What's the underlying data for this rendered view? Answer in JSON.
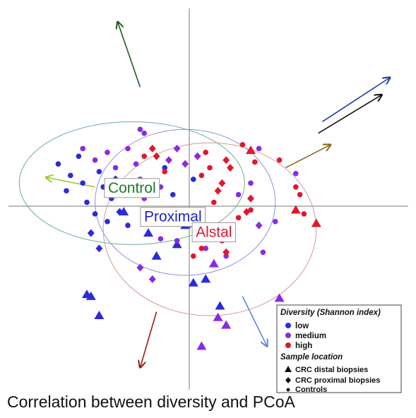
{
  "chart_data": {
    "type": "scatter",
    "title": "Correlation between diversity and PCoA",
    "xlim": [
      -1,
      1
    ],
    "ylim": [
      -1,
      1
    ],
    "grid": false,
    "axes_lines_at_origin": true,
    "colors": {
      "low": "#2b2bd9",
      "medium": "#8a2be2",
      "high": "#e0182d"
    },
    "legend": {
      "placement": "bottom-right",
      "diversity_heading": "Diversity (Shannon index)",
      "diversity_items": [
        {
          "key": "low",
          "label": "low"
        },
        {
          "key": "medium",
          "label": "medium"
        },
        {
          "key": "high",
          "label": "high"
        }
      ],
      "location_heading": "Sample location",
      "location_items": [
        {
          "shape": "triangle",
          "label": "CRC distal biopsies"
        },
        {
          "shape": "diamond",
          "label": "CRC proximal biopsies"
        },
        {
          "shape": "circle",
          "label": "Controls"
        }
      ]
    },
    "group_labels": [
      {
        "text": "Control",
        "color": "#1d7a2a",
        "x": -0.28,
        "y": 0.1
      },
      {
        "text": "Proximal",
        "color": "#2222cc",
        "x": -0.08,
        "y": -0.05
      },
      {
        "text": "Alstal",
        "color": "#e0182d",
        "x": 0.12,
        "y": -0.13
      }
    ],
    "ellipses": [
      {
        "name": "Control",
        "color": "#6fae8f",
        "cx": -0.28,
        "cy": 0.12,
        "rx": 0.55,
        "ry": 0.32
      },
      {
        "name": "Proximal",
        "color": "#8f8fe0",
        "cx": -0.02,
        "cy": 0.02,
        "rx": 0.44,
        "ry": 0.38
      },
      {
        "name": "Distal",
        "color": "#d49a9a",
        "cx": 0.1,
        "cy": -0.12,
        "rx": 0.52,
        "ry": 0.45
      }
    ],
    "arrows": [
      {
        "color": "#1c5e1c",
        "x1": -0.24,
        "y1": 0.62,
        "x2": -0.35,
        "y2": 0.96
      },
      {
        "color": "#1f3fa8",
        "x1": 0.65,
        "y1": 0.44,
        "x2": 0.98,
        "y2": 0.67
      },
      {
        "color": "#111111",
        "x1": 0.63,
        "y1": 0.38,
        "x2": 0.94,
        "y2": 0.58
      },
      {
        "color": "#8a6a1a",
        "x1": 0.47,
        "y1": 0.2,
        "x2": 0.69,
        "y2": 0.32
      },
      {
        "color": "#9acd32",
        "x1": -0.46,
        "y1": 0.1,
        "x2": -0.7,
        "y2": 0.15
      },
      {
        "color": "#5a8ad6",
        "x1": 0.26,
        "y1": -0.47,
        "x2": 0.38,
        "y2": -0.73
      },
      {
        "color": "#9a1a1a",
        "x1": -0.16,
        "y1": -0.55,
        "x2": -0.24,
        "y2": -0.84
      }
    ],
    "series": [
      {
        "name": "low",
        "points": [
          {
            "x": -0.64,
            "y": 0.22,
            "s": "circle"
          },
          {
            "x": -0.6,
            "y": 0.08,
            "s": "circle"
          },
          {
            "x": -0.58,
            "y": 0.16,
            "s": "circle"
          },
          {
            "x": -0.54,
            "y": 0.26,
            "s": "circle"
          },
          {
            "x": -0.52,
            "y": 0.12,
            "s": "circle"
          },
          {
            "x": -0.5,
            "y": 0.02,
            "s": "circle"
          },
          {
            "x": -0.46,
            "y": -0.04,
            "s": "circle"
          },
          {
            "x": -0.44,
            "y": 0.18,
            "s": "circle"
          },
          {
            "x": -0.42,
            "y": 0.1,
            "s": "circle"
          },
          {
            "x": -0.4,
            "y": -0.08,
            "s": "circle"
          },
          {
            "x": -0.38,
            "y": 0.04,
            "s": "circle"
          },
          {
            "x": -0.48,
            "y": -0.14,
            "s": "diamond"
          },
          {
            "x": -0.44,
            "y": -0.22,
            "s": "diamond"
          },
          {
            "x": -0.36,
            "y": 0.14,
            "s": "diamond"
          },
          {
            "x": -0.34,
            "y": -0.03,
            "s": "diamond"
          },
          {
            "x": -0.3,
            "y": -0.1,
            "s": "circle"
          },
          {
            "x": -0.32,
            "y": -0.03,
            "s": "triangle"
          },
          {
            "x": -0.2,
            "y": -0.14,
            "s": "triangle"
          },
          {
            "x": -0.16,
            "y": -0.26,
            "s": "triangle"
          },
          {
            "x": -0.18,
            "y": -0.09,
            "s": "circle"
          },
          {
            "x": -0.1,
            "y": -0.03,
            "s": "triangle"
          },
          {
            "x": -0.06,
            "y": -0.2,
            "s": "triangle"
          },
          {
            "x": 0.02,
            "y": -0.4,
            "s": "triangle"
          },
          {
            "x": 0.08,
            "y": -0.38,
            "s": "triangle"
          },
          {
            "x": -0.02,
            "y": -0.1,
            "s": "triangle"
          },
          {
            "x": 0.15,
            "y": -0.52,
            "s": "triangle"
          },
          {
            "x": -0.5,
            "y": -0.46,
            "s": "triangle"
          },
          {
            "x": -0.48,
            "y": -0.47,
            "s": "triangle"
          },
          {
            "x": -0.44,
            "y": -0.57,
            "s": "triangle"
          },
          {
            "x": -0.12,
            "y": 0.2,
            "s": "circle"
          },
          {
            "x": -0.08,
            "y": 0.06,
            "s": "circle"
          },
          {
            "x": 0.02,
            "y": 0.14,
            "s": "circle"
          }
        ]
      },
      {
        "name": "medium",
        "points": [
          {
            "x": -0.52,
            "y": 0.3,
            "s": "circle"
          },
          {
            "x": -0.46,
            "y": 0.24,
            "s": "circle"
          },
          {
            "x": -0.4,
            "y": 0.28,
            "s": "circle"
          },
          {
            "x": -0.36,
            "y": 0.2,
            "s": "circle"
          },
          {
            "x": -0.3,
            "y": 0.3,
            "s": "circle"
          },
          {
            "x": -0.26,
            "y": 0.22,
            "s": "circle"
          },
          {
            "x": -0.22,
            "y": 0.38,
            "s": "circle"
          },
          {
            "x": -0.24,
            "y": 0.14,
            "s": "circle"
          },
          {
            "x": -0.28,
            "y": 0.06,
            "s": "circle"
          },
          {
            "x": -0.22,
            "y": 0.04,
            "s": "circle"
          },
          {
            "x": -0.14,
            "y": 0.1,
            "s": "circle"
          },
          {
            "x": -0.1,
            "y": 0.24,
            "s": "diamond"
          },
          {
            "x": -0.06,
            "y": 0.3,
            "s": "diamond"
          },
          {
            "x": -0.02,
            "y": 0.22,
            "s": "diamond"
          },
          {
            "x": 0.04,
            "y": 0.26,
            "s": "diamond"
          },
          {
            "x": -0.2,
            "y": -0.06,
            "s": "circle"
          },
          {
            "x": -0.14,
            "y": -0.17,
            "s": "circle"
          },
          {
            "x": -0.06,
            "y": -0.18,
            "s": "circle"
          },
          {
            "x": 0.0,
            "y": -0.1,
            "s": "circle"
          },
          {
            "x": 0.08,
            "y": -0.22,
            "s": "circle"
          },
          {
            "x": 0.14,
            "y": -0.16,
            "s": "circle"
          },
          {
            "x": 0.12,
            "y": -0.3,
            "s": "triangle"
          },
          {
            "x": 0.18,
            "y": -0.26,
            "s": "circle"
          },
          {
            "x": 0.24,
            "y": 0.06,
            "s": "circle"
          },
          {
            "x": 0.3,
            "y": 0.12,
            "s": "circle"
          },
          {
            "x": 0.34,
            "y": 0.3,
            "s": "circle"
          },
          {
            "x": -0.24,
            "y": -0.32,
            "s": "diamond"
          },
          {
            "x": -0.18,
            "y": -0.38,
            "s": "diamond"
          },
          {
            "x": 0.34,
            "y": -0.1,
            "s": "diamond"
          },
          {
            "x": 0.36,
            "y": -0.24,
            "s": "circle"
          },
          {
            "x": 0.52,
            "y": 0.17,
            "s": "circle"
          },
          {
            "x": 0.42,
            "y": -0.08,
            "s": "circle"
          },
          {
            "x": 0.14,
            "y": -0.58,
            "s": "triangle"
          },
          {
            "x": 0.18,
            "y": -0.62,
            "s": "triangle"
          },
          {
            "x": 0.06,
            "y": -0.73,
            "s": "triangle"
          },
          {
            "x": 0.44,
            "y": -0.48,
            "s": "triangle"
          },
          {
            "x": -0.24,
            "y": 0.4,
            "s": "circle"
          }
        ]
      },
      {
        "name": "high",
        "points": [
          {
            "x": -0.22,
            "y": 0.26,
            "s": "circle"
          },
          {
            "x": -0.18,
            "y": 0.3,
            "s": "diamond"
          },
          {
            "x": -0.16,
            "y": 0.26,
            "s": "diamond"
          },
          {
            "x": -0.12,
            "y": 0.18,
            "s": "circle"
          },
          {
            "x": 0.06,
            "y": 0.16,
            "s": "circle"
          },
          {
            "x": 0.1,
            "y": 0.2,
            "s": "circle"
          },
          {
            "x": 0.14,
            "y": 0.08,
            "s": "diamond"
          },
          {
            "x": 0.18,
            "y": 0.24,
            "s": "diamond"
          },
          {
            "x": 0.2,
            "y": 0.2,
            "s": "diamond"
          },
          {
            "x": 0.16,
            "y": 0.12,
            "s": "diamond"
          },
          {
            "x": 0.12,
            "y": 0.02,
            "s": "circle"
          },
          {
            "x": 0.26,
            "y": 0.32,
            "s": "circle"
          },
          {
            "x": 0.3,
            "y": 0.29,
            "s": "triangle"
          },
          {
            "x": 0.3,
            "y": 0.04,
            "s": "diamond"
          },
          {
            "x": 0.28,
            "y": -0.03,
            "s": "diamond"
          },
          {
            "x": 0.3,
            "y": -0.02,
            "s": "circle"
          },
          {
            "x": 0.24,
            "y": -0.06,
            "s": "circle"
          },
          {
            "x": 0.2,
            "y": -0.12,
            "s": "circle"
          },
          {
            "x": 0.16,
            "y": -0.18,
            "s": "circle"
          },
          {
            "x": 0.06,
            "y": -0.22,
            "s": "circle"
          },
          {
            "x": 0.02,
            "y": -0.26,
            "s": "circle"
          },
          {
            "x": 0.18,
            "y": -0.24,
            "s": "diamond"
          },
          {
            "x": 0.44,
            "y": 0.24,
            "s": "circle"
          },
          {
            "x": 0.52,
            "y": 0.1,
            "s": "circle"
          },
          {
            "x": 0.54,
            "y": 0.06,
            "s": "circle"
          },
          {
            "x": 0.52,
            "y": -0.02,
            "s": "triangle"
          },
          {
            "x": 0.56,
            "y": -0.04,
            "s": "circle"
          },
          {
            "x": 0.62,
            "y": -0.09,
            "s": "triangle"
          },
          {
            "x": 0.08,
            "y": 0.28,
            "s": "circle"
          },
          {
            "x": 0.32,
            "y": 0.23,
            "s": "circle"
          }
        ]
      }
    ]
  },
  "caption": "Correlation between diversity and PCoA"
}
